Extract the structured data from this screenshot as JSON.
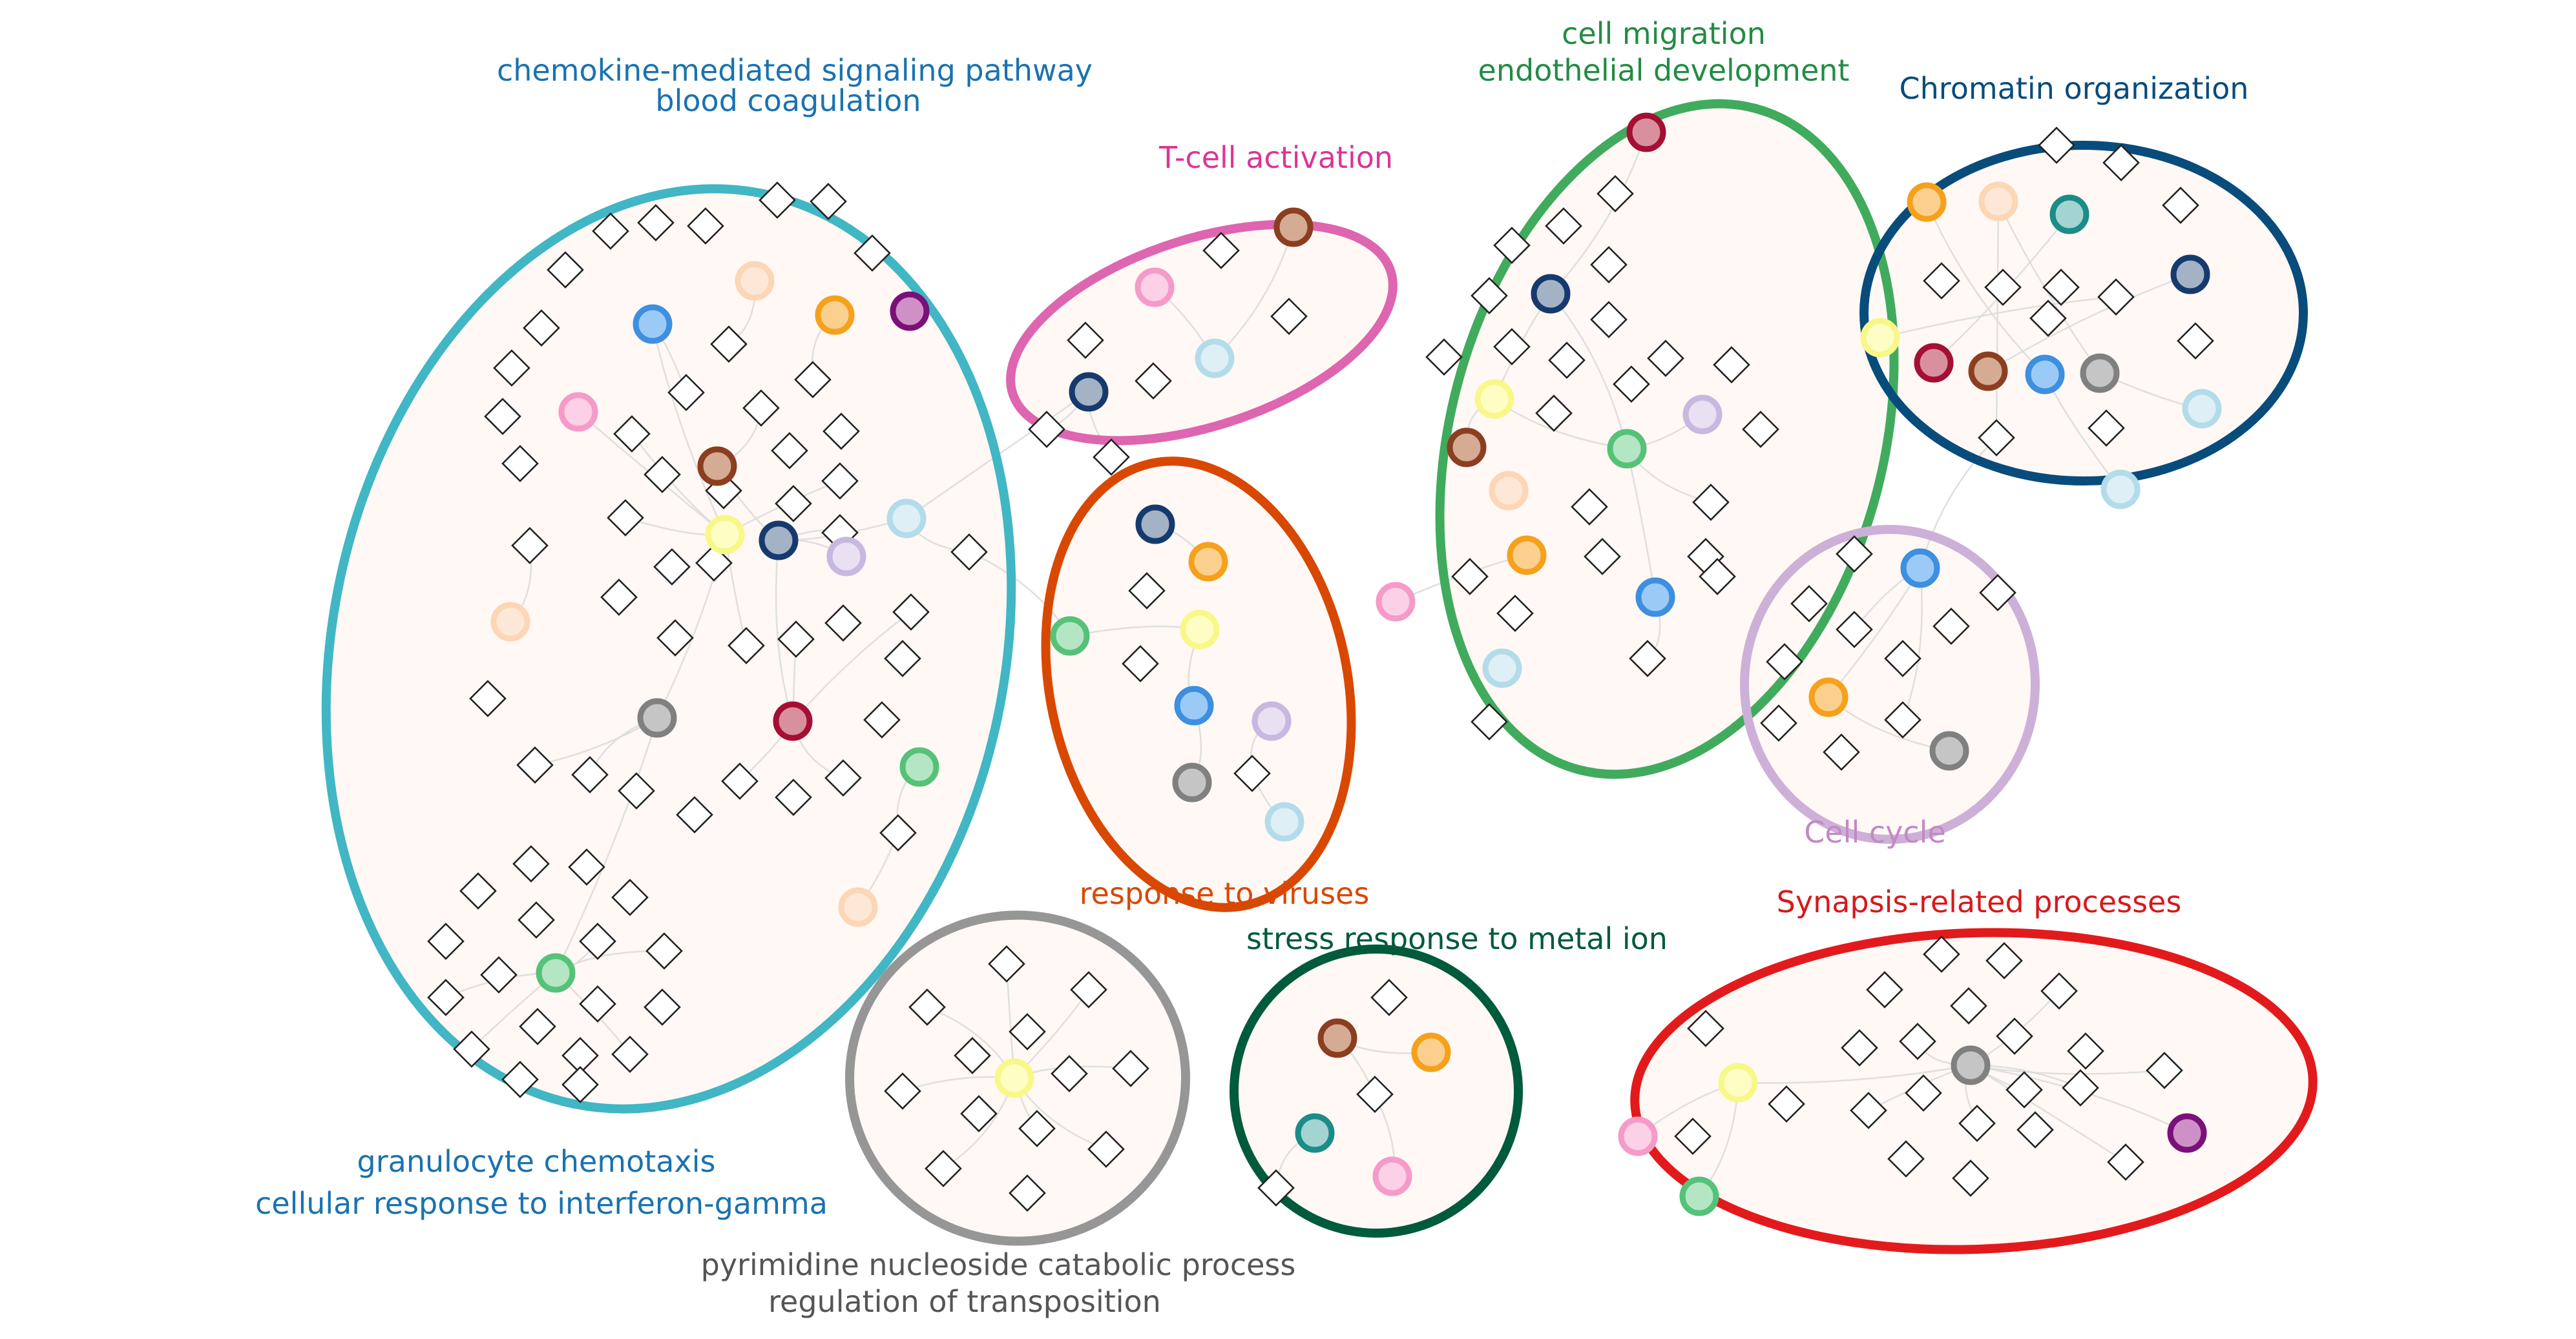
{
  "colors": {
    "chemokine": "#41b6c4",
    "tcell": "#de65b0",
    "viruses": "#d94801",
    "migration": "#41ab5d",
    "chromatin": "#084c7c",
    "cellcycle": "#cdb0d8",
    "pyrimidine": "#969696",
    "stress": "#005a3c",
    "synapse": "#e31a1c",
    "text_chemokine": "#1a72b0",
    "text_tcell": "#dd3497",
    "text_viruses": "#d94801",
    "text_migration": "#238b45",
    "text_chromatin": "#084c7c",
    "text_cellcycle": "#c289c4",
    "text_pyrimidine": "#555555",
    "text_stress": "#005a3c",
    "text_synapse": "#d7191c"
  },
  "labels": {
    "chemokine_1": "chemokine-mediated signaling pathway",
    "chemokine_2": "blood coagulation",
    "granulocyte_1": "granulocyte chemotaxis",
    "granulocyte_2": "cellular response to interferon-gamma",
    "tcell": "T-cell activation",
    "viruses": "response to viruses",
    "migration_1": "cell migration",
    "migration_2": "endothelial development",
    "chromatin": "Chromatin organization",
    "cellcycle": "Cell cycle",
    "pyrimidine_1": "pyrimidine nucleoside catabolic process",
    "pyrimidine_2": "regulation of transposition",
    "stress": "stress response to metal ion",
    "synapse": "Synapsis-related processes"
  },
  "node_palette": {
    "blue": [
      "#3d8fe0",
      "#9ccaf7"
    ],
    "orange": [
      "#f5a11c",
      "#fbd08f"
    ],
    "peach": [
      "#fcd6b5",
      "#fde8d8"
    ],
    "pink": [
      "#f59ac9",
      "#fcd0e6"
    ],
    "brown": [
      "#8c3e20",
      "#d6ab93"
    ],
    "navy": [
      "#163a6e",
      "#a4b2c6"
    ],
    "yellow": [
      "#f8f889",
      "#fdfdc4"
    ],
    "lavender": [
      "#c8b7e0",
      "#e9e1f2"
    ],
    "lightblue": [
      "#b3dcea",
      "#deeff6"
    ],
    "gray": [
      "#808080",
      "#c5c5c5"
    ],
    "crimson": [
      "#a50f34",
      "#d8909f"
    ],
    "green": [
      "#55c278",
      "#b5e6c4"
    ],
    "purple": [
      "#7a1079",
      "#cf90c8"
    ],
    "teal": [
      "#1b8c88",
      "#a3d4d1"
    ]
  }
}
